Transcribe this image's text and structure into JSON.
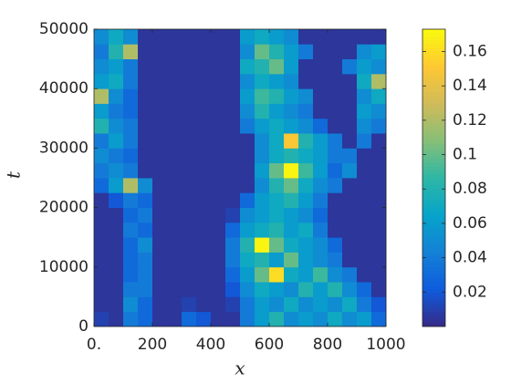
{
  "chart_data": {
    "type": "heatmap",
    "xlabel": "x",
    "ylabel": "t",
    "colormap": "parula",
    "xbins": [
      0,
      50,
      100,
      150,
      200,
      250,
      300,
      350,
      400,
      450,
      500,
      550,
      600,
      650,
      700,
      750,
      800,
      850,
      900,
      950,
      1000
    ],
    "ybins": [
      0,
      2500,
      5000,
      7500,
      10000,
      12500,
      15000,
      17500,
      20000,
      22500,
      25000,
      27500,
      30000,
      32500,
      35000,
      37500,
      40000,
      42500,
      45000,
      47500,
      50000
    ],
    "xlim": [
      0,
      1000
    ],
    "ylim": [
      0,
      50000
    ],
    "xticks": [
      {
        "value": 0,
        "label": "0."
      },
      200,
      400,
      600,
      800,
      1000
    ],
    "yticks": [
      0,
      10000,
      20000,
      30000,
      40000,
      50000
    ],
    "clim": [
      0,
      0.173
    ],
    "cticks": [
      0.02,
      0.04,
      0.06,
      0.08,
      0.1,
      0.12,
      0.14,
      0.16
    ],
    "z": [
      [
        0.01,
        0.005,
        0.04,
        0.03,
        0.005,
        0.005,
        0.03,
        0.02,
        0.005,
        0.005,
        0.04,
        0.06,
        0.08,
        0.05,
        0.06,
        0.05,
        0.07,
        0.05,
        0.06,
        0.03
      ],
      [
        0.005,
        0.005,
        0.05,
        0.03,
        0.005,
        0.005,
        0.01,
        0.005,
        0.005,
        0.01,
        0.04,
        0.06,
        0.05,
        0.07,
        0.05,
        0.06,
        0.05,
        0.07,
        0.04,
        0.02
      ],
      [
        0.005,
        0.005,
        0.04,
        0.04,
        0.005,
        0.005,
        0.005,
        0.005,
        0.005,
        0.02,
        0.05,
        0.07,
        0.06,
        0.05,
        0.08,
        0.06,
        0.08,
        0.05,
        0.03,
        0.005
      ],
      [
        0.005,
        0.005,
        0.03,
        0.04,
        0.005,
        0.005,
        0.005,
        0.005,
        0.005,
        0.03,
        0.06,
        0.1,
        0.16,
        0.07,
        0.06,
        0.09,
        0.05,
        0.04,
        0.005,
        0.005
      ],
      [
        0.005,
        0.005,
        0.03,
        0.04,
        0.005,
        0.005,
        0.005,
        0.005,
        0.005,
        0.04,
        0.07,
        0.08,
        0.06,
        0.1,
        0.06,
        0.05,
        0.04,
        0.005,
        0.005,
        0.005
      ],
      [
        0.005,
        0.005,
        0.03,
        0.05,
        0.005,
        0.005,
        0.005,
        0.005,
        0.005,
        0.04,
        0.08,
        0.17,
        0.1,
        0.07,
        0.06,
        0.05,
        0.03,
        0.005,
        0.005,
        0.005
      ],
      [
        0.005,
        0.005,
        0.04,
        0.03,
        0.005,
        0.005,
        0.005,
        0.005,
        0.005,
        0.03,
        0.06,
        0.07,
        0.08,
        0.06,
        0.07,
        0.04,
        0.005,
        0.005,
        0.005,
        0.005
      ],
      [
        0.005,
        0.005,
        0.03,
        0.04,
        0.005,
        0.005,
        0.005,
        0.005,
        0.005,
        0.01,
        0.05,
        0.06,
        0.07,
        0.06,
        0.05,
        0.03,
        0.005,
        0.005,
        0.005,
        0.005
      ],
      [
        0.005,
        0.02,
        0.04,
        0.03,
        0.005,
        0.005,
        0.005,
        0.005,
        0.005,
        0.005,
        0.03,
        0.06,
        0.07,
        0.08,
        0.06,
        0.04,
        0.005,
        0.005,
        0.005,
        0.005
      ],
      [
        0.03,
        0.06,
        0.12,
        0.05,
        0.005,
        0.005,
        0.005,
        0.005,
        0.005,
        0.005,
        0.005,
        0.05,
        0.08,
        0.1,
        0.07,
        0.05,
        0.04,
        0.005,
        0.005,
        0.005
      ],
      [
        0.04,
        0.05,
        0.04,
        0.005,
        0.005,
        0.005,
        0.005,
        0.005,
        0.005,
        0.005,
        0.005,
        0.06,
        0.1,
        0.17,
        0.09,
        0.06,
        0.03,
        0.05,
        0.005,
        0.005
      ],
      [
        0.05,
        0.04,
        0.03,
        0.005,
        0.005,
        0.005,
        0.005,
        0.005,
        0.005,
        0.005,
        0.005,
        0.05,
        0.07,
        0.08,
        0.07,
        0.06,
        0.04,
        0.04,
        0.005,
        0.005
      ],
      [
        0.04,
        0.06,
        0.04,
        0.005,
        0.005,
        0.005,
        0.005,
        0.005,
        0.005,
        0.005,
        0.005,
        0.05,
        0.07,
        0.15,
        0.08,
        0.06,
        0.04,
        0.005,
        0.04,
        0.005
      ],
      [
        0.08,
        0.05,
        0.04,
        0.005,
        0.005,
        0.005,
        0.005,
        0.005,
        0.005,
        0.005,
        0.04,
        0.06,
        0.07,
        0.06,
        0.05,
        0.03,
        0.005,
        0.005,
        0.05,
        0.04
      ],
      [
        0.06,
        0.04,
        0.03,
        0.005,
        0.005,
        0.005,
        0.005,
        0.005,
        0.005,
        0.005,
        0.05,
        0.08,
        0.06,
        0.05,
        0.04,
        0.005,
        0.005,
        0.005,
        0.06,
        0.05
      ],
      [
        0.12,
        0.05,
        0.03,
        0.005,
        0.005,
        0.005,
        0.005,
        0.005,
        0.005,
        0.005,
        0.06,
        0.09,
        0.08,
        0.06,
        0.05,
        0.005,
        0.005,
        0.005,
        0.05,
        0.07
      ],
      [
        0.06,
        0.07,
        0.04,
        0.005,
        0.005,
        0.005,
        0.005,
        0.005,
        0.005,
        0.005,
        0.05,
        0.07,
        0.06,
        0.05,
        0.005,
        0.005,
        0.005,
        0.005,
        0.07,
        0.12
      ],
      [
        0.05,
        0.06,
        0.04,
        0.005,
        0.005,
        0.005,
        0.005,
        0.005,
        0.005,
        0.005,
        0.07,
        0.08,
        0.1,
        0.06,
        0.005,
        0.005,
        0.005,
        0.04,
        0.06,
        0.05
      ],
      [
        0.04,
        0.08,
        0.12,
        0.005,
        0.005,
        0.005,
        0.005,
        0.005,
        0.005,
        0.005,
        0.05,
        0.1,
        0.08,
        0.06,
        0.04,
        0.005,
        0.005,
        0.005,
        0.05,
        0.06
      ],
      [
        0.05,
        0.07,
        0.05,
        0.005,
        0.005,
        0.005,
        0.005,
        0.005,
        0.005,
        0.005,
        0.06,
        0.07,
        0.06,
        0.05,
        0.005,
        0.005,
        0.005,
        0.005,
        0.005,
        0.005
      ]
    ]
  }
}
